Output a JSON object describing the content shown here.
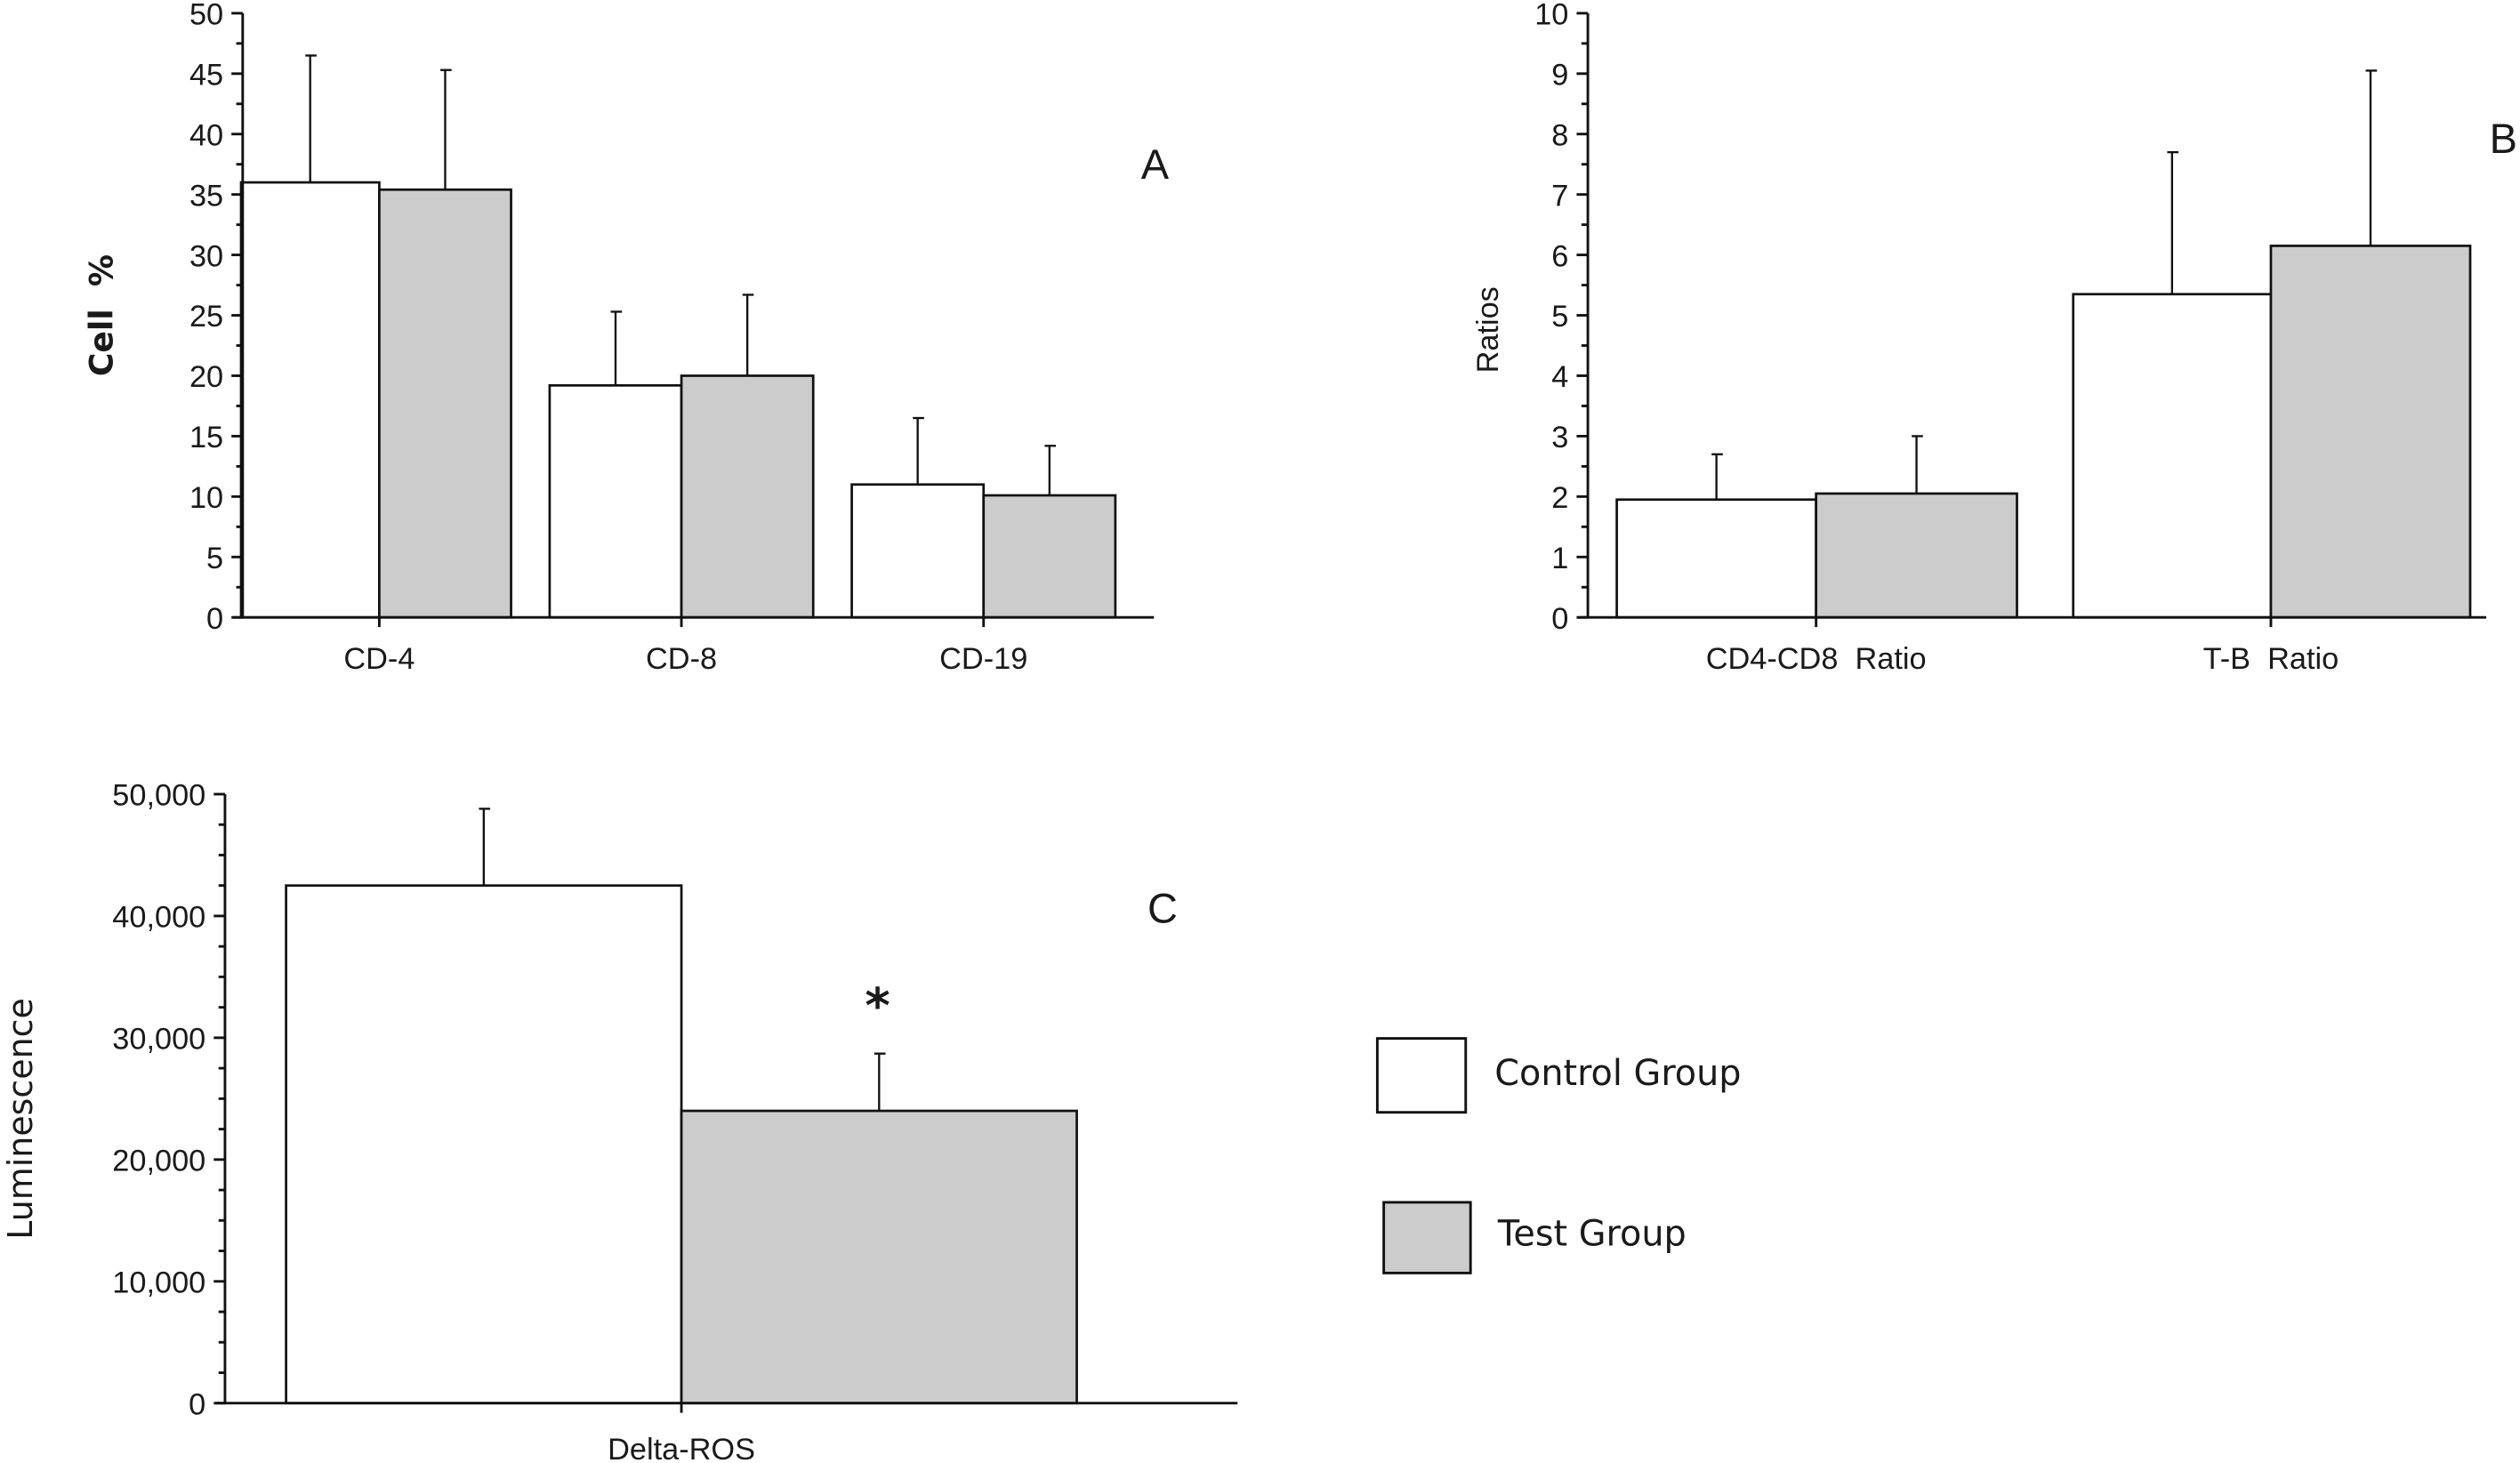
{
  "chart_data": [
    {
      "panel": "A",
      "type": "bar",
      "title": "",
      "xlabel": "",
      "ylabel": "Cell  %",
      "ylim": [
        0,
        50
      ],
      "yticks": [
        "0",
        "5",
        "10",
        "15",
        "20",
        "25",
        "30",
        "35",
        "40",
        "45",
        "50"
      ],
      "categories": [
        "CD-4",
        "CD-8",
        "CD-19"
      ],
      "series": [
        {
          "name": "Control Group",
          "values": [
            36.0,
            19.2,
            11.0
          ],
          "error_upper": [
            46.5,
            25.3,
            16.5
          ]
        },
        {
          "name": "Test Group",
          "values": [
            35.4,
            20.0,
            10.1
          ],
          "error_upper": [
            45.3,
            26.7,
            14.2
          ]
        }
      ],
      "grid": false
    },
    {
      "panel": "B",
      "type": "bar",
      "title": "",
      "xlabel": "",
      "ylabel": "Ratios",
      "ylim": [
        0,
        10
      ],
      "yticks": [
        "0",
        "1",
        "2",
        "3",
        "4",
        "5",
        "6",
        "7",
        "8",
        "9",
        "10"
      ],
      "categories": [
        "CD4-CD8  Ratio",
        "T-B  Ratio"
      ],
      "series": [
        {
          "name": "Control Group",
          "values": [
            1.95,
            5.35
          ],
          "error_upper": [
            2.7,
            7.7
          ]
        },
        {
          "name": "Test Group",
          "values": [
            2.05,
            6.15
          ],
          "error_upper": [
            3.0,
            9.05
          ]
        }
      ],
      "grid": false
    },
    {
      "panel": "C",
      "type": "bar",
      "title": "",
      "xlabel": "",
      "ylabel": "Luminescence",
      "ylim": [
        0,
        50000
      ],
      "yticks": [
        "0",
        "10,000",
        "20,000",
        "30,000",
        "40,000",
        "50,000"
      ],
      "categories": [
        "Delta-ROS"
      ],
      "series": [
        {
          "name": "Control Group",
          "values": [
            42500
          ],
          "error_upper": [
            48800
          ]
        },
        {
          "name": "Test Group",
          "values": [
            24000
          ],
          "error_upper": [
            28700
          ]
        }
      ],
      "annotations": [
        "*"
      ],
      "grid": false
    }
  ],
  "legend": {
    "placement": "bottom-right",
    "items": [
      {
        "label": "Control Group",
        "color": "#ffffff"
      },
      {
        "label": "Test Group",
        "color": "#cccccc"
      }
    ]
  },
  "colors": {
    "control": "#ffffff",
    "test": "#cccccc",
    "stroke": "#111111"
  }
}
